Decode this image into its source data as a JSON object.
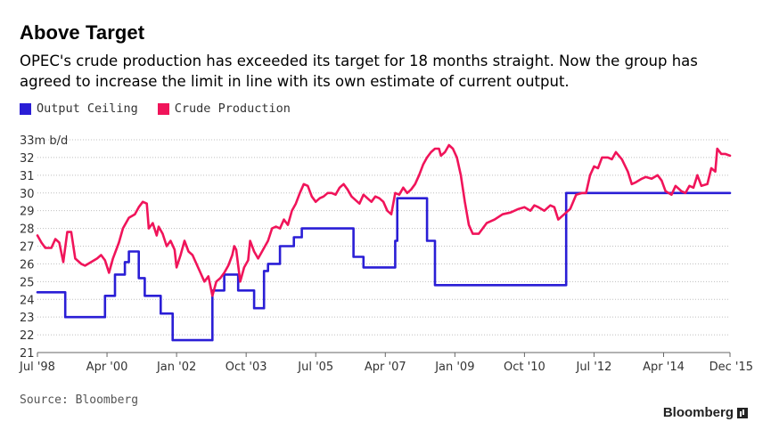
{
  "title": "Above Target",
  "subtitle": "OPEC's crude production has exceeded its target for 18 months straight. Now the group has agreed to increase the limit in line with its own estimate of current output.",
  "source": "Source: Bloomberg",
  "brand": "Bloomberg",
  "colors": {
    "ceiling": "#2a1ed6",
    "production": "#f0145a",
    "grid": "#bfbfbf"
  },
  "chart_data": {
    "type": "line",
    "ylim": [
      21,
      33
    ],
    "xlim": [
      1998.5,
      2015.92
    ],
    "y_unit_label": "33m b/d",
    "y_ticks": [
      {
        "value": 33,
        "label": "33m b/d"
      },
      {
        "value": 32,
        "label": "32"
      },
      {
        "value": 31,
        "label": "31"
      },
      {
        "value": 30,
        "label": "30"
      },
      {
        "value": 29,
        "label": "29"
      },
      {
        "value": 28,
        "label": "28"
      },
      {
        "value": 27,
        "label": "27"
      },
      {
        "value": 26,
        "label": "26"
      },
      {
        "value": 25,
        "label": "25"
      },
      {
        "value": 24,
        "label": "24"
      },
      {
        "value": 23,
        "label": "23"
      },
      {
        "value": 22,
        "label": "22"
      },
      {
        "value": 21,
        "label": "21"
      }
    ],
    "x_ticks": [
      {
        "value": 1998.5,
        "label": "Jul '98"
      },
      {
        "value": 2000.25,
        "label": "Apr '00"
      },
      {
        "value": 2002.0,
        "label": "Jan '02"
      },
      {
        "value": 2003.75,
        "label": "Oct '03"
      },
      {
        "value": 2005.5,
        "label": "Jul '05"
      },
      {
        "value": 2007.25,
        "label": "Apr '07"
      },
      {
        "value": 2009.0,
        "label": "Jan '09"
      },
      {
        "value": 2010.75,
        "label": "Oct '10"
      },
      {
        "value": 2012.5,
        "label": "Jul '12"
      },
      {
        "value": 2014.25,
        "label": "Apr '14"
      },
      {
        "value": 2015.92,
        "label": "Dec '15"
      }
    ],
    "series": [
      {
        "name": "Output Ceiling",
        "step": true,
        "points": [
          [
            1998.5,
            24.4
          ],
          [
            1999.2,
            23.0
          ],
          [
            2000.2,
            24.2
          ],
          [
            2000.45,
            25.4
          ],
          [
            2000.7,
            26.1
          ],
          [
            2000.8,
            26.7
          ],
          [
            2001.05,
            25.2
          ],
          [
            2001.2,
            24.2
          ],
          [
            2001.6,
            23.2
          ],
          [
            2001.9,
            21.7
          ],
          [
            2002.9,
            24.5
          ],
          [
            2003.2,
            25.4
          ],
          [
            2003.55,
            24.5
          ],
          [
            2003.95,
            23.5
          ],
          [
            2004.2,
            25.6
          ],
          [
            2004.3,
            26.0
          ],
          [
            2004.6,
            27.0
          ],
          [
            2004.95,
            27.5
          ],
          [
            2005.15,
            28.0
          ],
          [
            2006.45,
            26.4
          ],
          [
            2006.7,
            25.8
          ],
          [
            2007.5,
            27.3
          ],
          [
            2007.55,
            29.7
          ],
          [
            2008.3,
            27.3
          ],
          [
            2008.5,
            24.8
          ],
          [
            2011.8,
            30.0
          ],
          [
            2015.92,
            30.0
          ]
        ]
      },
      {
        "name": "Crude Production",
        "step": false,
        "points": [
          [
            1998.5,
            27.6
          ],
          [
            1998.6,
            27.2
          ],
          [
            1998.7,
            26.9
          ],
          [
            1998.85,
            26.9
          ],
          [
            1998.95,
            27.4
          ],
          [
            1999.05,
            27.2
          ],
          [
            1999.15,
            26.1
          ],
          [
            1999.25,
            27.8
          ],
          [
            1999.35,
            27.8
          ],
          [
            1999.45,
            26.3
          ],
          [
            1999.6,
            26.0
          ],
          [
            1999.7,
            25.9
          ],
          [
            1999.85,
            26.1
          ],
          [
            2000.0,
            26.3
          ],
          [
            2000.1,
            26.5
          ],
          [
            2000.2,
            26.2
          ],
          [
            2000.3,
            25.5
          ],
          [
            2000.4,
            26.3
          ],
          [
            2000.55,
            27.2
          ],
          [
            2000.65,
            28.0
          ],
          [
            2000.8,
            28.6
          ],
          [
            2000.95,
            28.8
          ],
          [
            2001.05,
            29.2
          ],
          [
            2001.15,
            29.5
          ],
          [
            2001.25,
            29.4
          ],
          [
            2001.3,
            28.0
          ],
          [
            2001.4,
            28.3
          ],
          [
            2001.5,
            27.6
          ],
          [
            2001.55,
            28.1
          ],
          [
            2001.65,
            27.7
          ],
          [
            2001.75,
            27.0
          ],
          [
            2001.85,
            27.3
          ],
          [
            2001.95,
            26.8
          ],
          [
            2002.0,
            25.8
          ],
          [
            2002.1,
            26.5
          ],
          [
            2002.2,
            27.3
          ],
          [
            2002.3,
            26.7
          ],
          [
            2002.4,
            26.5
          ],
          [
            2002.5,
            26.0
          ],
          [
            2002.6,
            25.5
          ],
          [
            2002.7,
            25.0
          ],
          [
            2002.8,
            25.3
          ],
          [
            2002.9,
            24.2
          ],
          [
            2003.0,
            25.0
          ],
          [
            2003.1,
            25.2
          ],
          [
            2003.2,
            25.5
          ],
          [
            2003.3,
            25.9
          ],
          [
            2003.4,
            26.5
          ],
          [
            2003.45,
            27.0
          ],
          [
            2003.5,
            26.8
          ],
          [
            2003.6,
            25.0
          ],
          [
            2003.7,
            25.8
          ],
          [
            2003.8,
            26.2
          ],
          [
            2003.85,
            27.3
          ],
          [
            2003.95,
            26.7
          ],
          [
            2004.05,
            26.3
          ],
          [
            2004.15,
            26.7
          ],
          [
            2004.3,
            27.3
          ],
          [
            2004.4,
            28.0
          ],
          [
            2004.5,
            28.1
          ],
          [
            2004.6,
            28.0
          ],
          [
            2004.7,
            28.5
          ],
          [
            2004.8,
            28.2
          ],
          [
            2004.9,
            29.0
          ],
          [
            2005.0,
            29.4
          ],
          [
            2005.1,
            30.0
          ],
          [
            2005.2,
            30.5
          ],
          [
            2005.3,
            30.4
          ],
          [
            2005.4,
            29.8
          ],
          [
            2005.5,
            29.5
          ],
          [
            2005.6,
            29.7
          ],
          [
            2005.7,
            29.8
          ],
          [
            2005.8,
            30.0
          ],
          [
            2005.9,
            30.0
          ],
          [
            2006.0,
            29.9
          ],
          [
            2006.1,
            30.3
          ],
          [
            2006.2,
            30.5
          ],
          [
            2006.3,
            30.2
          ],
          [
            2006.4,
            29.8
          ],
          [
            2006.5,
            29.6
          ],
          [
            2006.6,
            29.4
          ],
          [
            2006.7,
            29.9
          ],
          [
            2006.8,
            29.7
          ],
          [
            2006.9,
            29.5
          ],
          [
            2007.0,
            29.8
          ],
          [
            2007.1,
            29.7
          ],
          [
            2007.2,
            29.5
          ],
          [
            2007.3,
            29.0
          ],
          [
            2007.4,
            28.8
          ],
          [
            2007.5,
            30.0
          ],
          [
            2007.6,
            29.9
          ],
          [
            2007.7,
            30.3
          ],
          [
            2007.8,
            30.0
          ],
          [
            2007.9,
            30.2
          ],
          [
            2008.0,
            30.5
          ],
          [
            2008.1,
            31.0
          ],
          [
            2008.2,
            31.6
          ],
          [
            2008.3,
            32.0
          ],
          [
            2008.4,
            32.3
          ],
          [
            2008.5,
            32.5
          ],
          [
            2008.6,
            32.5
          ],
          [
            2008.65,
            32.1
          ],
          [
            2008.75,
            32.3
          ],
          [
            2008.85,
            32.7
          ],
          [
            2008.95,
            32.5
          ],
          [
            2009.05,
            32.0
          ],
          [
            2009.15,
            31.0
          ],
          [
            2009.25,
            29.5
          ],
          [
            2009.35,
            28.2
          ],
          [
            2009.45,
            27.7
          ],
          [
            2009.6,
            27.7
          ],
          [
            2009.8,
            28.3
          ],
          [
            2010.0,
            28.5
          ],
          [
            2010.2,
            28.8
          ],
          [
            2010.4,
            28.9
          ],
          [
            2010.6,
            29.1
          ],
          [
            2010.75,
            29.2
          ],
          [
            2010.9,
            29.0
          ],
          [
            2011.0,
            29.3
          ],
          [
            2011.1,
            29.2
          ],
          [
            2011.25,
            29.0
          ],
          [
            2011.4,
            29.3
          ],
          [
            2011.5,
            29.2
          ],
          [
            2011.6,
            28.5
          ],
          [
            2011.75,
            28.8
          ],
          [
            2011.9,
            29.1
          ],
          [
            2012.05,
            29.9
          ],
          [
            2012.2,
            30.0
          ],
          [
            2012.3,
            30.0
          ],
          [
            2012.4,
            31.0
          ],
          [
            2012.5,
            31.5
          ],
          [
            2012.6,
            31.4
          ],
          [
            2012.7,
            32.0
          ],
          [
            2012.85,
            32.0
          ],
          [
            2012.95,
            31.9
          ],
          [
            2013.05,
            32.3
          ],
          [
            2013.2,
            31.9
          ],
          [
            2013.35,
            31.2
          ],
          [
            2013.45,
            30.5
          ],
          [
            2013.55,
            30.6
          ],
          [
            2013.7,
            30.8
          ],
          [
            2013.8,
            30.9
          ],
          [
            2013.95,
            30.8
          ],
          [
            2014.1,
            31.0
          ],
          [
            2014.2,
            30.7
          ],
          [
            2014.3,
            30.1
          ],
          [
            2014.45,
            29.9
          ],
          [
            2014.55,
            30.4
          ],
          [
            2014.7,
            30.1
          ],
          [
            2014.8,
            30.0
          ],
          [
            2014.9,
            30.4
          ],
          [
            2015.0,
            30.3
          ],
          [
            2015.1,
            31.0
          ],
          [
            2015.2,
            30.4
          ],
          [
            2015.35,
            30.5
          ],
          [
            2015.45,
            31.4
          ],
          [
            2015.55,
            31.2
          ],
          [
            2015.6,
            32.5
          ],
          [
            2015.7,
            32.2
          ],
          [
            2015.8,
            32.2
          ],
          [
            2015.92,
            32.1
          ]
        ]
      }
    ]
  }
}
